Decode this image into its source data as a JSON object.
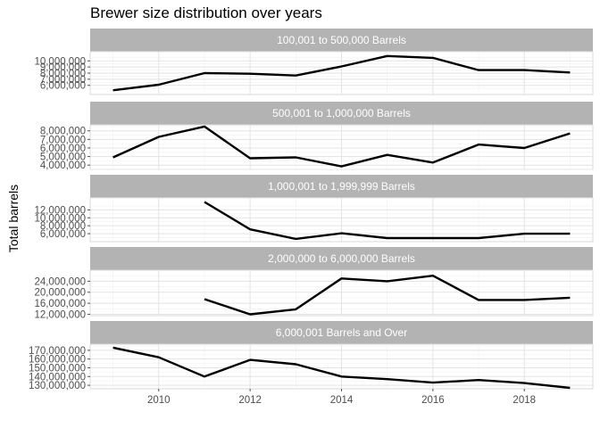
{
  "chart_data": {
    "type": "line",
    "title": "Brewer size distribution over years",
    "ylabel": "Total barrels",
    "xlabel": "",
    "x_ticks": [
      2010,
      2012,
      2014,
      2016,
      2018
    ],
    "x_range": [
      2008.5,
      2019.5
    ],
    "grid": true,
    "facets": [
      {
        "name": "100,001 to 500,000 Barrels",
        "ylim": [
          4500000,
          11500000
        ],
        "y_ticks": [
          6000000,
          7000000,
          8000000,
          9000000,
          10000000
        ],
        "y_tick_labels": [
          "6,000,000",
          "7,000,000",
          "8,000,000",
          "9,000,000",
          "10,000,000"
        ],
        "x": [
          2009,
          2010,
          2011,
          2012,
          2013,
          2014,
          2015,
          2016,
          2017,
          2018,
          2019
        ],
        "values": [
          5200000,
          6100000,
          8000000,
          7900000,
          7600000,
          9100000,
          10800000,
          10500000,
          8500000,
          8500000,
          8100000
        ]
      },
      {
        "name": "500,001 to 1,000,000 Barrels",
        "ylim": [
          3500000,
          8700000
        ],
        "y_ticks": [
          4000000,
          5000000,
          6000000,
          7000000,
          8000000
        ],
        "y_tick_labels": [
          "4,000,000",
          "5,000,000",
          "6,000,000",
          "7,000,000",
          "8,000,000"
        ],
        "x": [
          2009,
          2010,
          2011,
          2012,
          2013,
          2014,
          2015,
          2016,
          2017,
          2018,
          2019
        ],
        "values": [
          4900000,
          7300000,
          8500000,
          4800000,
          4900000,
          3850000,
          5200000,
          4300000,
          6400000,
          6000000,
          7700000
        ]
      },
      {
        "name": "1,000,001 to 1,999,999 Barrels",
        "ylim": [
          4000000,
          15000000
        ],
        "y_ticks": [
          6000000,
          8000000,
          10000000,
          12000000
        ],
        "y_tick_labels": [
          "6,000,000",
          "8,000,000",
          "10,000,000",
          "12,000,000"
        ],
        "x": [
          2011,
          2012,
          2013,
          2014,
          2015,
          2016,
          2017,
          2018,
          2019
        ],
        "values": [
          14000000,
          7100000,
          4700000,
          6100000,
          4900000,
          4900000,
          4900000,
          6000000,
          6000000
        ]
      },
      {
        "name": "2,000,000 to 6,000,000 Barrels",
        "ylim": [
          11500000,
          28000000
        ],
        "y_ticks": [
          12000000,
          16000000,
          20000000,
          24000000
        ],
        "y_tick_labels": [
          "12,000,000",
          "16,000,000",
          "20,000,000",
          "24,000,000"
        ],
        "x": [
          2011,
          2012,
          2013,
          2014,
          2015,
          2016,
          2017,
          2018,
          2019
        ],
        "values": [
          17500000,
          12000000,
          13800000,
          25000000,
          24000000,
          26000000,
          17200000,
          17200000,
          18000000
        ]
      },
      {
        "name": "6,000,001 Barrels and Over",
        "ylim": [
          126000000,
          177000000
        ],
        "y_ticks": [
          130000000,
          140000000,
          150000000,
          160000000,
          170000000
        ],
        "y_tick_labels": [
          "130,000,000",
          "140,000,000",
          "150,000,000",
          "160,000,000",
          "170,000,000"
        ],
        "x": [
          2009,
          2010,
          2011,
          2012,
          2013,
          2014,
          2015,
          2016,
          2017,
          2018,
          2019
        ],
        "values": [
          173000000,
          162000000,
          140000000,
          159000000,
          154000000,
          140000000,
          137000000,
          133000000,
          136000000,
          132500000,
          127000000
        ]
      }
    ]
  }
}
